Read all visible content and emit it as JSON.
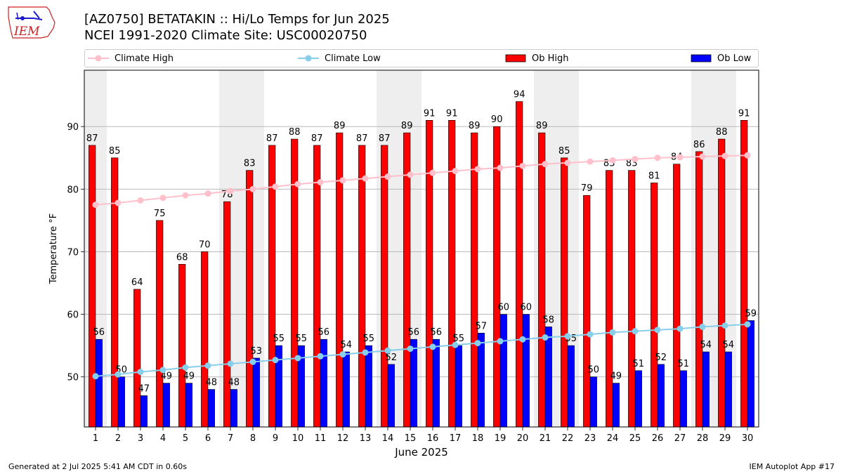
{
  "header": {
    "logo_text": "IEM",
    "title_line1": "[AZ0750] BETATAKIN :: Hi/Lo Temps for Jun 2025",
    "title_line2": "NCEI 1991-2020 Climate Site: USC00020750"
  },
  "legend": {
    "climate_high": "Climate High",
    "climate_low": "Climate Low",
    "ob_high": "Ob High",
    "ob_low": "Ob Low"
  },
  "footer": {
    "generated": "Generated at 2 Jul 2025 5:41 AM CDT in 0.60s",
    "app": "IEM Autoplot App #17"
  },
  "colors": {
    "ob_high": "#ff0000",
    "ob_low": "#0000ff",
    "climate_high": "#ffc0cb",
    "climate_low": "#87ceeb",
    "weekend_band": "#eeeeee",
    "grid": "#b0b0b0"
  },
  "chart_data": {
    "type": "bar",
    "xlabel": "June 2025",
    "ylabel": "Temperature °F",
    "ylim": [
      42,
      99
    ],
    "yticks": [
      50,
      60,
      70,
      80,
      90
    ],
    "grid": "horizontal",
    "legend_position": "top",
    "categories": [
      1,
      2,
      3,
      4,
      5,
      6,
      7,
      8,
      9,
      10,
      11,
      12,
      13,
      14,
      15,
      16,
      17,
      18,
      19,
      20,
      21,
      22,
      23,
      24,
      25,
      26,
      27,
      28,
      29,
      30
    ],
    "shaded_days": [
      1,
      7,
      8,
      14,
      15,
      21,
      22,
      28,
      29
    ],
    "series": [
      {
        "name": "Ob High",
        "kind": "bar",
        "values": [
          87,
          85,
          64,
          75,
          68,
          70,
          78,
          83,
          87,
          88,
          87,
          89,
          87,
          87,
          89,
          91,
          91,
          89,
          90,
          94,
          89,
          85,
          79,
          83,
          83,
          81,
          84,
          86,
          88,
          91
        ]
      },
      {
        "name": "Ob Low",
        "kind": "bar",
        "values": [
          56,
          50,
          47,
          49,
          49,
          48,
          48,
          53,
          55,
          55,
          56,
          54,
          55,
          52,
          56,
          56,
          55,
          57,
          60,
          60,
          58,
          55,
          50,
          49,
          51,
          52,
          51,
          54,
          54,
          59
        ]
      },
      {
        "name": "Climate High",
        "kind": "line",
        "values": [
          77.5,
          77.8,
          78.2,
          78.6,
          79.0,
          79.3,
          79.7,
          80.0,
          80.4,
          80.8,
          81.1,
          81.4,
          81.7,
          82.0,
          82.3,
          82.6,
          82.9,
          83.2,
          83.4,
          83.7,
          84.0,
          84.2,
          84.4,
          84.6,
          84.8,
          85.0,
          85.1,
          85.2,
          85.3,
          85.4
        ]
      },
      {
        "name": "Climate Low",
        "kind": "line",
        "values": [
          50.1,
          50.4,
          50.8,
          51.1,
          51.5,
          51.8,
          52.1,
          52.4,
          52.7,
          53.0,
          53.3,
          53.6,
          53.9,
          54.2,
          54.5,
          54.8,
          55.1,
          55.4,
          55.7,
          56.0,
          56.3,
          56.5,
          56.8,
          57.1,
          57.3,
          57.5,
          57.7,
          58.0,
          58.2,
          58.4
        ]
      }
    ]
  }
}
